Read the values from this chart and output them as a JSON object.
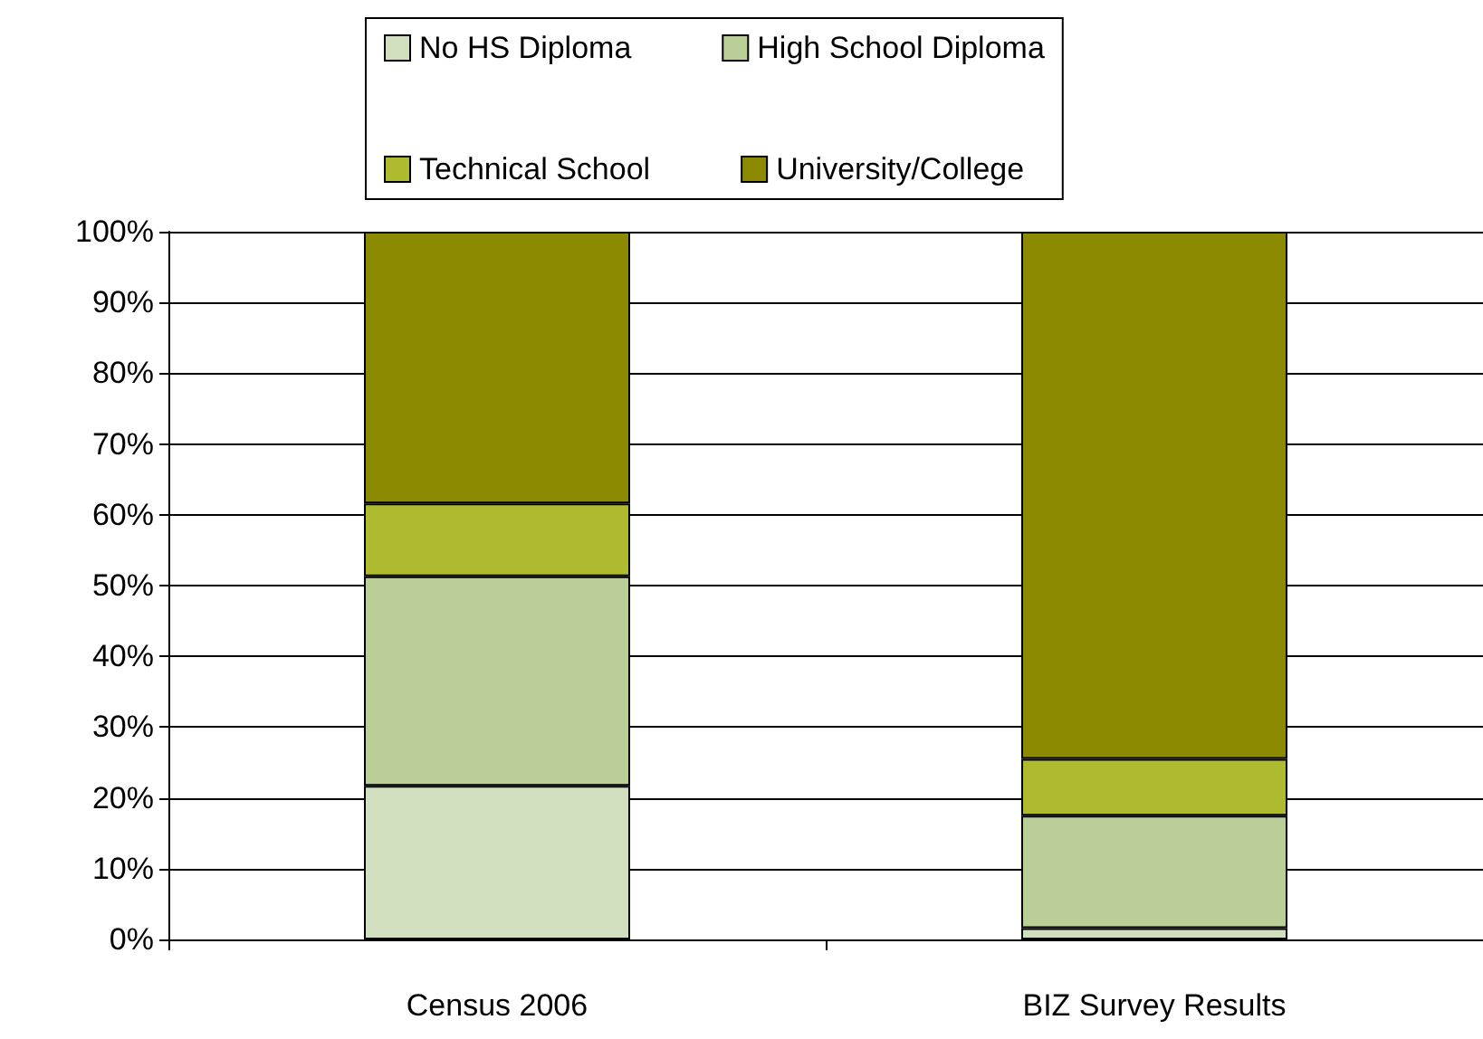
{
  "chart_data": {
    "type": "bar",
    "stacked": true,
    "categories": [
      "Census 2006",
      "BIZ Survey Results"
    ],
    "series": [
      {
        "name": "No HS Diploma",
        "color": "#d2dfbf",
        "values": [
          21.7,
          1.6
        ]
      },
      {
        "name": "High School Diploma",
        "color": "#bacf98",
        "values": [
          29.6,
          15.9
        ]
      },
      {
        "name": "Technical School",
        "color": "#afbb2e",
        "values": [
          10.3,
          8.0
        ]
      },
      {
        "name": "University/College",
        "color": "#8c8a00",
        "values": [
          38.4,
          74.5
        ]
      }
    ],
    "ylim": [
      0,
      100
    ],
    "yticks": [
      {
        "value": 0,
        "label": "0%"
      },
      {
        "value": 10,
        "label": "10%"
      },
      {
        "value": 20,
        "label": "20%"
      },
      {
        "value": 30,
        "label": "30%"
      },
      {
        "value": 40,
        "label": "40%"
      },
      {
        "value": 50,
        "label": "50%"
      },
      {
        "value": 60,
        "label": "60%"
      },
      {
        "value": 70,
        "label": "70%"
      },
      {
        "value": 80,
        "label": "80%"
      },
      {
        "value": 90,
        "label": "90%"
      },
      {
        "value": 100,
        "label": "100%"
      }
    ],
    "grid": "y",
    "legend": "top"
  }
}
